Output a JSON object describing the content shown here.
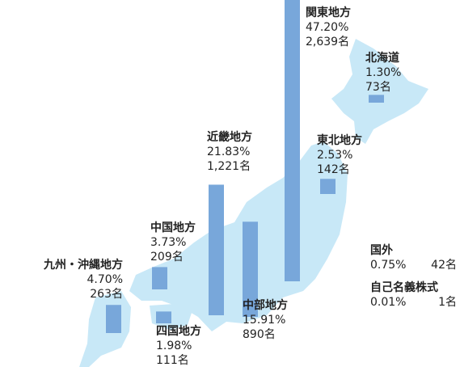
{
  "regions": [
    {
      "name": "関東地方",
      "value": 47.2,
      "value_label": "47.20%",
      "count": 2639,
      "count_label": "2,639名"
    },
    {
      "name": "北海道",
      "value": 1.3,
      "value_label": "1.30%",
      "count": 73,
      "count_label": "73名"
    },
    {
      "name": "東北地方",
      "value": 2.53,
      "value_label": "2.53%",
      "count": 142,
      "count_label": "142名"
    },
    {
      "name": "近畿地方",
      "value": 21.83,
      "value_label": "21.83%",
      "count": 1221,
      "count_label": "1,221名"
    },
    {
      "name": "中部地方",
      "value": 15.91,
      "value_label": "15.91%",
      "count": 890,
      "count_label": "890名"
    },
    {
      "name": "中国地方",
      "value": 3.73,
      "value_label": "3.73%",
      "count": 209,
      "count_label": "209名"
    },
    {
      "name": "四国地方",
      "value": 1.98,
      "value_label": "1.98%",
      "count": 111,
      "count_label": "111名"
    },
    {
      "name": "九州・沖縄地方",
      "value": 4.7,
      "value_label": "4.70%",
      "count": 263,
      "count_label": "263名"
    }
  ],
  "others": [
    {
      "name": "国外",
      "value": 0.75,
      "value_label": "0.75%",
      "count": 42,
      "count_label": "42名"
    },
    {
      "name": "自己名義株式",
      "value": 0.01,
      "value_label": "0.01%",
      "count": 1,
      "count_label": "1名"
    }
  ],
  "bar_color": "#78a7da",
  "map_color": "#c8e8f7"
}
